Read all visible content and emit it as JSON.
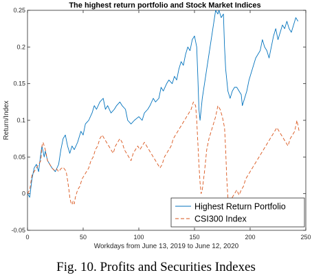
{
  "chart_data": {
    "type": "line",
    "title": "The highest return portfolio and Stock Market Indices",
    "xlabel": "Workdays from June 13, 2019 to June 12, 2020",
    "ylabel": "Return/Index",
    "xlim": [
      0,
      250
    ],
    "ylim": [
      -0.05,
      0.25
    ],
    "xticks": [
      0,
      50,
      100,
      150,
      200,
      250
    ],
    "yticks": [
      -0.05,
      0,
      0.05,
      0.1,
      0.15,
      0.2,
      0.25
    ],
    "xtick_labels": [
      "0",
      "50",
      "100",
      "150",
      "200",
      "250"
    ],
    "ytick_labels": [
      "-0.05",
      "0",
      "0.05",
      "0.1",
      "0.15",
      "0.2",
      "0.25"
    ],
    "grid": false,
    "legend_position": "bottom-right",
    "series": [
      {
        "name": "Highest Return Portfolio",
        "color": "#0072BD",
        "style": "solid",
        "points": [
          [
            0,
            0
          ],
          [
            2,
            -0.005
          ],
          [
            4,
            0.02
          ],
          [
            6,
            0.035
          ],
          [
            8,
            0.04
          ],
          [
            10,
            0.03
          ],
          [
            12,
            0.055
          ],
          [
            13,
            0.065
          ],
          [
            15,
            0.05
          ],
          [
            16,
            0.058
          ],
          [
            18,
            0.045
          ],
          [
            20,
            0.04
          ],
          [
            22,
            0.035
          ],
          [
            25,
            0.03
          ],
          [
            28,
            0.04
          ],
          [
            30,
            0.06
          ],
          [
            32,
            0.075
          ],
          [
            34,
            0.08
          ],
          [
            36,
            0.065
          ],
          [
            38,
            0.055
          ],
          [
            40,
            0.065
          ],
          [
            42,
            0.06
          ],
          [
            45,
            0.07
          ],
          [
            48,
            0.085
          ],
          [
            50,
            0.08
          ],
          [
            52,
            0.095
          ],
          [
            55,
            0.1
          ],
          [
            58,
            0.11
          ],
          [
            60,
            0.12
          ],
          [
            62,
            0.115
          ],
          [
            65,
            0.125
          ],
          [
            68,
            0.13
          ],
          [
            70,
            0.115
          ],
          [
            72,
            0.12
          ],
          [
            75,
            0.11
          ],
          [
            78,
            0.115
          ],
          [
            80,
            0.12
          ],
          [
            83,
            0.125
          ],
          [
            85,
            0.12
          ],
          [
            88,
            0.115
          ],
          [
            90,
            0.1
          ],
          [
            93,
            0.095
          ],
          [
            96,
            0.1
          ],
          [
            100,
            0.105
          ],
          [
            103,
            0.1
          ],
          [
            105,
            0.11
          ],
          [
            108,
            0.115
          ],
          [
            110,
            0.12
          ],
          [
            113,
            0.13
          ],
          [
            115,
            0.125
          ],
          [
            118,
            0.13
          ],
          [
            120,
            0.145
          ],
          [
            122,
            0.14
          ],
          [
            125,
            0.15
          ],
          [
            127,
            0.155
          ],
          [
            130,
            0.15
          ],
          [
            132,
            0.16
          ],
          [
            134,
            0.155
          ],
          [
            136,
            0.17
          ],
          [
            138,
            0.18
          ],
          [
            140,
            0.175
          ],
          [
            142,
            0.19
          ],
          [
            144,
            0.2
          ],
          [
            146,
            0.195
          ],
          [
            148,
            0.21
          ],
          [
            150,
            0.215
          ],
          [
            152,
            0.2
          ],
          [
            153,
            0.16
          ],
          [
            154,
            0.115
          ],
          [
            155,
            0.1
          ],
          [
            157,
            0.13
          ],
          [
            159,
            0.15
          ],
          [
            161,
            0.17
          ],
          [
            163,
            0.19
          ],
          [
            165,
            0.21
          ],
          [
            167,
            0.23
          ],
          [
            169,
            0.25
          ],
          [
            171,
            0.245
          ],
          [
            172,
            0.25
          ],
          [
            174,
            0.24
          ],
          [
            176,
            0.245
          ],
          [
            177,
            0.2
          ],
          [
            178,
            0.17
          ],
          [
            180,
            0.14
          ],
          [
            182,
            0.13
          ],
          [
            184,
            0.14
          ],
          [
            186,
            0.145
          ],
          [
            188,
            0.145
          ],
          [
            190,
            0.14
          ],
          [
            192,
            0.135
          ],
          [
            193,
            0.12
          ],
          [
            195,
            0.13
          ],
          [
            197,
            0.14
          ],
          [
            199,
            0.155
          ],
          [
            201,
            0.165
          ],
          [
            203,
            0.175
          ],
          [
            205,
            0.185
          ],
          [
            207,
            0.19
          ],
          [
            209,
            0.195
          ],
          [
            211,
            0.21
          ],
          [
            213,
            0.2
          ],
          [
            215,
            0.195
          ],
          [
            217,
            0.185
          ],
          [
            219,
            0.2
          ],
          [
            221,
            0.215
          ],
          [
            223,
            0.225
          ],
          [
            225,
            0.21
          ],
          [
            227,
            0.22
          ],
          [
            229,
            0.23
          ],
          [
            231,
            0.225
          ],
          [
            233,
            0.235
          ],
          [
            235,
            0.225
          ],
          [
            237,
            0.22
          ],
          [
            239,
            0.23
          ],
          [
            241,
            0.24
          ],
          [
            243,
            0.235
          ]
        ]
      },
      {
        "name": "CSI300 Index",
        "color": "#D95319",
        "style": "dashed",
        "points": [
          [
            0,
            0
          ],
          [
            2,
            0.005
          ],
          [
            4,
            0.025
          ],
          [
            6,
            0.03
          ],
          [
            8,
            0.035
          ],
          [
            10,
            0.04
          ],
          [
            12,
            0.045
          ],
          [
            13,
            0.065
          ],
          [
            14,
            0.07
          ],
          [
            16,
            0.06
          ],
          [
            18,
            0.045
          ],
          [
            20,
            0.04
          ],
          [
            22,
            0.035
          ],
          [
            24,
            0.032
          ],
          [
            26,
            0.034
          ],
          [
            28,
            0.03
          ],
          [
            30,
            0.034
          ],
          [
            32,
            0.036
          ],
          [
            34,
            0.032
          ],
          [
            35,
            0.028
          ],
          [
            36,
            0.018
          ],
          [
            37,
            0.008
          ],
          [
            38,
            -0.005
          ],
          [
            39,
            -0.012
          ],
          [
            40,
            -0.015
          ],
          [
            41,
            -0.01
          ],
          [
            42,
            -0.014
          ],
          [
            43,
            -0.005
          ],
          [
            45,
            0.005
          ],
          [
            47,
            0.01
          ],
          [
            49,
            0.02
          ],
          [
            51,
            0.025
          ],
          [
            53,
            0.03
          ],
          [
            55,
            0.035
          ],
          [
            57,
            0.045
          ],
          [
            59,
            0.05
          ],
          [
            61,
            0.06
          ],
          [
            63,
            0.065
          ],
          [
            65,
            0.075
          ],
          [
            67,
            0.08
          ],
          [
            69,
            0.075
          ],
          [
            71,
            0.07
          ],
          [
            73,
            0.065
          ],
          [
            75,
            0.06
          ],
          [
            77,
            0.055
          ],
          [
            79,
            0.065
          ],
          [
            81,
            0.07
          ],
          [
            83,
            0.075
          ],
          [
            85,
            0.07
          ],
          [
            87,
            0.06
          ],
          [
            89,
            0.055
          ],
          [
            91,
            0.05
          ],
          [
            93,
            0.045
          ],
          [
            95,
            0.055
          ],
          [
            97,
            0.06
          ],
          [
            99,
            0.065
          ],
          [
            101,
            0.06
          ],
          [
            103,
            0.065
          ],
          [
            105,
            0.07
          ],
          [
            107,
            0.065
          ],
          [
            109,
            0.06
          ],
          [
            111,
            0.055
          ],
          [
            113,
            0.05
          ],
          [
            115,
            0.045
          ],
          [
            117,
            0.04
          ],
          [
            119,
            0.035
          ],
          [
            121,
            0.04
          ],
          [
            123,
            0.05
          ],
          [
            125,
            0.055
          ],
          [
            127,
            0.06
          ],
          [
            129,
            0.065
          ],
          [
            131,
            0.075
          ],
          [
            133,
            0.08
          ],
          [
            135,
            0.085
          ],
          [
            137,
            0.09
          ],
          [
            139,
            0.095
          ],
          [
            141,
            0.1
          ],
          [
            143,
            0.105
          ],
          [
            145,
            0.11
          ],
          [
            147,
            0.115
          ],
          [
            149,
            0.125
          ],
          [
            151,
            0.12
          ],
          [
            152,
            0.1
          ],
          [
            153,
            0.07
          ],
          [
            154,
            0.04
          ],
          [
            155,
            0.015
          ],
          [
            156,
            0
          ],
          [
            157,
            0.005
          ],
          [
            159,
            0.03
          ],
          [
            161,
            0.06
          ],
          [
            163,
            0.075
          ],
          [
            165,
            0.085
          ],
          [
            167,
            0.095
          ],
          [
            169,
            0.105
          ],
          [
            171,
            0.12
          ],
          [
            173,
            0.115
          ],
          [
            175,
            0.105
          ],
          [
            177,
            0.09
          ],
          [
            178,
            0.06
          ],
          [
            179,
            0.02
          ],
          [
            180,
            -0.005
          ],
          [
            182,
            -0.01
          ],
          [
            184,
            -0.005
          ],
          [
            186,
            0
          ],
          [
            188,
            0.005
          ],
          [
            190,
            -0.002
          ],
          [
            192,
            0.005
          ],
          [
            194,
            0.01
          ],
          [
            196,
            0.02
          ],
          [
            198,
            0.025
          ],
          [
            200,
            0.03
          ],
          [
            202,
            0.035
          ],
          [
            204,
            0.04
          ],
          [
            206,
            0.045
          ],
          [
            208,
            0.05
          ],
          [
            210,
            0.055
          ],
          [
            212,
            0.06
          ],
          [
            214,
            0.065
          ],
          [
            216,
            0.07
          ],
          [
            218,
            0.075
          ],
          [
            220,
            0.08
          ],
          [
            222,
            0.085
          ],
          [
            224,
            0.09
          ],
          [
            226,
            0.085
          ],
          [
            228,
            0.08
          ],
          [
            230,
            0.075
          ],
          [
            232,
            0.07
          ],
          [
            234,
            0.065
          ],
          [
            236,
            0.075
          ],
          [
            238,
            0.08
          ],
          [
            240,
            0.085
          ],
          [
            242,
            0.1
          ],
          [
            244,
            0.085
          ]
        ]
      }
    ]
  },
  "caption": "Fig. 10. Profits and Securities Indexes"
}
